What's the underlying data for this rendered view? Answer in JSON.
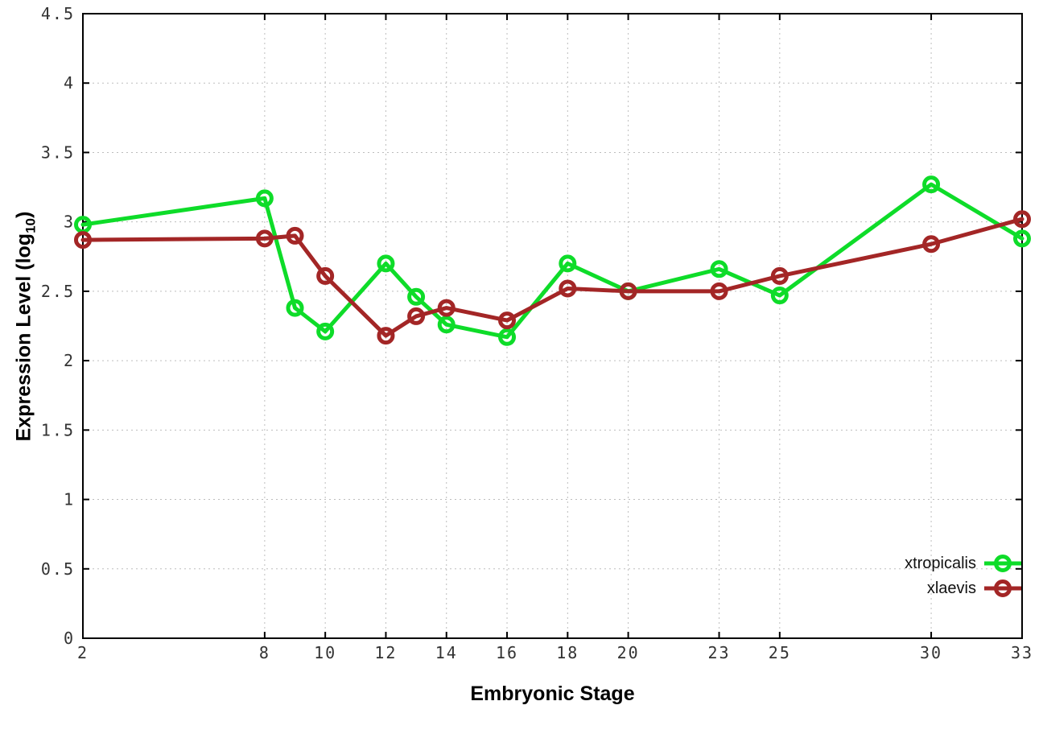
{
  "chart_data": {
    "type": "line",
    "title": "",
    "xlabel": "Embryonic Stage",
    "ylabel": {
      "prefix": "Expression Level (log",
      "sub": "10",
      "suffix": ")"
    },
    "xlim": [
      2,
      33
    ],
    "ylim": [
      0,
      4.5
    ],
    "grid": true,
    "legend_position": "bottom-right-inside",
    "x": [
      2,
      8,
      9,
      10,
      12,
      13,
      14,
      16,
      18,
      20,
      23,
      25,
      30,
      33
    ],
    "xticks": [
      2,
      8,
      10,
      12,
      14,
      16,
      18,
      20,
      23,
      25,
      30,
      33
    ],
    "xtick_labels": [
      "2",
      "8",
      "10",
      "12",
      "14",
      "16",
      "18",
      "20",
      "23",
      "25",
      "30",
      "33"
    ],
    "yticks": [
      0,
      0.5,
      1,
      1.5,
      2,
      2.5,
      3,
      3.5,
      4,
      4.5
    ],
    "ytick_labels": [
      "0",
      "0.5",
      "1",
      "1.5",
      "2",
      "2.5",
      "3",
      "3.5",
      "4",
      "4.5"
    ],
    "series": [
      {
        "name": "xtropicalis",
        "color": "#0edc29",
        "marker": "open-circle",
        "values": [
          2.98,
          3.17,
          2.38,
          2.21,
          2.7,
          2.46,
          2.26,
          2.17,
          2.7,
          2.5,
          2.66,
          2.47,
          3.27,
          2.88
        ]
      },
      {
        "name": "xlaevis",
        "color": "#a32626",
        "marker": "open-circle",
        "values": [
          2.87,
          2.88,
          2.9,
          2.61,
          2.18,
          2.32,
          2.38,
          2.29,
          2.52,
          2.5,
          2.5,
          2.61,
          2.84,
          3.02
        ]
      }
    ],
    "colors": {
      "background": "#ffffff",
      "axis": "#000000",
      "grid": "#bdbdbd",
      "tick_label": "#333333"
    }
  }
}
